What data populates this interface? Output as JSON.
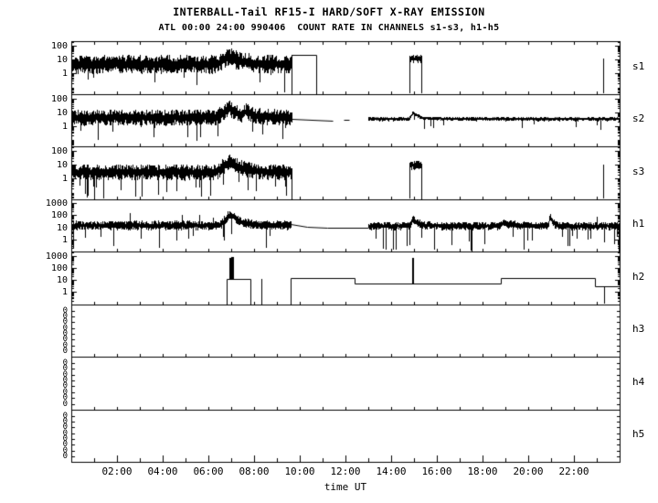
{
  "colors": {
    "trace": "#000000",
    "frame": "#000000",
    "background": "#ffffff"
  },
  "chart_data": {
    "type": "line",
    "title": "INTERBALL-Tail RF15-I HARD/SOFT X-RAY EMISSION",
    "subtitle": "ATL 00:00 24:00 990406  COUNT RATE IN CHANNELS s1-s3, h1-h5",
    "xlabel": "time UT",
    "x_range_hours": [
      0,
      24
    ],
    "grid": false,
    "legend": "none",
    "x_major_ticks": [
      {
        "hour": 2,
        "label": "02:00"
      },
      {
        "hour": 4,
        "label": "04:00"
      },
      {
        "hour": 6,
        "label": "06:00"
      },
      {
        "hour": 8,
        "label": "08:00"
      },
      {
        "hour": 10,
        "label": "10:00"
      },
      {
        "hour": 12,
        "label": "12:00"
      },
      {
        "hour": 14,
        "label": "14:00"
      },
      {
        "hour": 16,
        "label": "16:00"
      },
      {
        "hour": 18,
        "label": "18:00"
      },
      {
        "hour": 20,
        "label": "20:00"
      },
      {
        "hour": 22,
        "label": "22:00"
      }
    ],
    "panels": [
      {
        "label": "s1",
        "scale": "log",
        "log_range": [
          -1.5,
          2.35
        ],
        "yticks": [
          {
            "v": 100,
            "label": "100"
          },
          {
            "v": 10,
            "label": "10"
          },
          {
            "v": 1,
            "label": "1"
          }
        ],
        "bands": [
          {
            "t": [
              0.04,
              9.65
            ],
            "center_log": 0.65,
            "spread_log": 0.7,
            "dropout_prob": 0.05,
            "dropout_depth_log": 2.2
          }
        ],
        "flares": [
          {
            "start": 6.35,
            "peak_time": 6.9,
            "peak_add_log": 0.55,
            "decay_hours": 0.55
          }
        ],
        "lines": [
          [
            [
              9.65,
              -1.5
            ],
            [
              9.65,
              1.35
            ],
            [
              10.7,
              1.35
            ],
            [
              10.7,
              -1.5
            ]
          ]
        ],
        "bursts": [
          {
            "t": [
              14.78,
              15.32
            ],
            "center_log": 1.05,
            "spread_log": 0.3
          }
        ],
        "spikes": [
          {
            "t": 23.28,
            "from_log": -1.5,
            "to_log": 1.05,
            "w": 1
          }
        ]
      },
      {
        "label": "s2",
        "scale": "log",
        "log_range": [
          -1.5,
          2.35
        ],
        "yticks": [
          {
            "v": 100,
            "label": "100"
          },
          {
            "v": 10,
            "label": "10"
          },
          {
            "v": 1,
            "label": "1"
          }
        ],
        "bands": [
          {
            "t": [
              0.04,
              9.65
            ],
            "center_log": 0.6,
            "spread_log": 0.6,
            "dropout_prob": 0.06,
            "dropout_depth_log": 1.8
          },
          {
            "t": [
              13.0,
              23.96
            ],
            "center_log": 0.5,
            "spread_log": 0.16,
            "dropout_prob": 0.02,
            "dropout_depth_log": 0.8
          }
        ],
        "flares": [
          {
            "start": 6.35,
            "peak_time": 6.9,
            "peak_add_log": 0.7,
            "decay_hours": 0.5
          },
          {
            "start": 7.45,
            "peak_time": 7.65,
            "peak_add_log": 0.3,
            "decay_hours": 0.35
          },
          {
            "start": 14.75,
            "peak_time": 14.95,
            "peak_add_log": 0.45,
            "decay_hours": 0.3
          }
        ],
        "lines": [
          [
            [
              9.65,
              0.52
            ],
            [
              11.45,
              0.4
            ]
          ],
          [
            [
              11.9,
              0.44
            ],
            [
              12.15,
              0.44
            ]
          ]
        ]
      },
      {
        "label": "s3",
        "scale": "log",
        "log_range": [
          -1.5,
          2.35
        ],
        "yticks": [
          {
            "v": 100,
            "label": "100"
          },
          {
            "v": 10,
            "label": "10"
          },
          {
            "v": 1,
            "label": "1"
          }
        ],
        "bands": [
          {
            "t": [
              0.04,
              9.65
            ],
            "center_log": 0.45,
            "spread_log": 0.6,
            "dropout_prob": 0.14,
            "dropout_depth_log": 2.0
          }
        ],
        "flares": [
          {
            "start": 6.35,
            "peak_time": 6.9,
            "peak_add_log": 0.75,
            "decay_hours": 0.6
          }
        ],
        "lines": [
          [
            [
              9.65,
              0.5
            ],
            [
              9.65,
              -1.5
            ]
          ]
        ],
        "bursts": [
          {
            "t": [
              14.78,
              15.32
            ],
            "center_log": 0.95,
            "spread_log": 0.35
          }
        ],
        "spikes": [
          {
            "t": 23.28,
            "from_log": -1.5,
            "to_log": 1.0,
            "w": 1
          }
        ]
      },
      {
        "label": "h1",
        "scale": "log",
        "log_range": [
          -1.0,
          3.35
        ],
        "yticks": [
          {
            "v": 1000,
            "label": "1000"
          },
          {
            "v": 100,
            "label": "100"
          },
          {
            "v": 10,
            "label": "10"
          },
          {
            "v": 1,
            "label": "1"
          }
        ],
        "bands": [
          {
            "t": [
              0.04,
              9.6
            ],
            "center_log": 1.15,
            "spread_log": 0.4,
            "dropout_prob": 0.04,
            "dropout_depth_log": 2.0
          },
          {
            "t": [
              13.0,
              23.96
            ],
            "center_log": 1.1,
            "spread_log": 0.35,
            "dropout_prob": 0.08,
            "dropout_depth_log": 2.2
          }
        ],
        "flares": [
          {
            "start": 6.5,
            "peak_time": 6.95,
            "peak_add_log": 1.0,
            "decay_hours": 0.4
          },
          {
            "start": 14.8,
            "peak_time": 14.95,
            "peak_add_log": 0.6,
            "decay_hours": 0.25
          },
          {
            "start": 18.7,
            "peak_time": 18.9,
            "peak_add_log": 0.3,
            "decay_hours": 0.5
          },
          {
            "start": 20.85,
            "peak_time": 20.95,
            "peak_add_log": 0.75,
            "decay_hours": 0.12
          }
        ],
        "lines": [
          [
            [
              9.6,
              1.3
            ],
            [
              10.3,
              1.02
            ],
            [
              11.2,
              0.95
            ],
            [
              13.0,
              0.93
            ]
          ]
        ],
        "spikes": [
          {
            "t": 2.55,
            "from_log": 1.15,
            "to_log": 2.2,
            "w": 1
          },
          {
            "t": 4.85,
            "from_log": 1.15,
            "to_log": 2.0,
            "w": 1
          },
          {
            "t": 5.6,
            "from_log": 1.15,
            "to_log": 2.05,
            "w": 1
          },
          {
            "t": 6.2,
            "from_log": 1.15,
            "to_log": 1.8,
            "w": 1
          },
          {
            "t": 19.4,
            "from_log": 1.1,
            "to_log": 1.6,
            "w": 1
          },
          {
            "t": 23.0,
            "from_log": 1.1,
            "to_log": 1.9,
            "w": 1
          }
        ]
      },
      {
        "label": "h2",
        "scale": "log",
        "log_range": [
          -1.0,
          3.35
        ],
        "yticks": [
          {
            "v": 1000,
            "label": "1000"
          },
          {
            "v": 100,
            "label": "100"
          },
          {
            "v": 10,
            "label": "10"
          },
          {
            "v": 1,
            "label": "1"
          }
        ],
        "lines": [
          [
            [
              6.78,
              -1.0
            ],
            [
              6.78,
              1.1
            ],
            [
              7.82,
              1.1
            ],
            [
              7.82,
              -1.0
            ]
          ],
          [
            [
              9.6,
              -1.0
            ],
            [
              9.6,
              1.15
            ],
            [
              12.4,
              1.15
            ],
            [
              12.4,
              0.72
            ],
            [
              18.8,
              0.72
            ],
            [
              18.8,
              1.15
            ],
            [
              22.9,
              1.15
            ],
            [
              22.9,
              0.45
            ],
            [
              23.96,
              0.45
            ]
          ]
        ],
        "spikes": [
          {
            "t": 6.92,
            "from_log": 1.1,
            "to_log": 2.85,
            "w": 2
          },
          {
            "t": 7.05,
            "from_log": 1.1,
            "to_log": 2.9,
            "w": 3
          },
          {
            "t": 8.32,
            "from_log": -1.0,
            "to_log": 1.1,
            "w": 1
          },
          {
            "t": 14.95,
            "from_log": 0.72,
            "to_log": 2.85,
            "w": 2
          },
          {
            "t": 23.3,
            "from_log": -1.0,
            "to_log": 0.45,
            "w": 1
          }
        ]
      },
      {
        "label": "h3",
        "scale": "linear",
        "zero_stack": 8,
        "zero_label": "0",
        "empty": true
      },
      {
        "label": "h4",
        "scale": "linear",
        "zero_stack": 8,
        "zero_label": "0",
        "empty": true
      },
      {
        "label": "h5",
        "scale": "linear",
        "zero_stack": 8,
        "zero_label": "0",
        "empty": true
      }
    ]
  }
}
